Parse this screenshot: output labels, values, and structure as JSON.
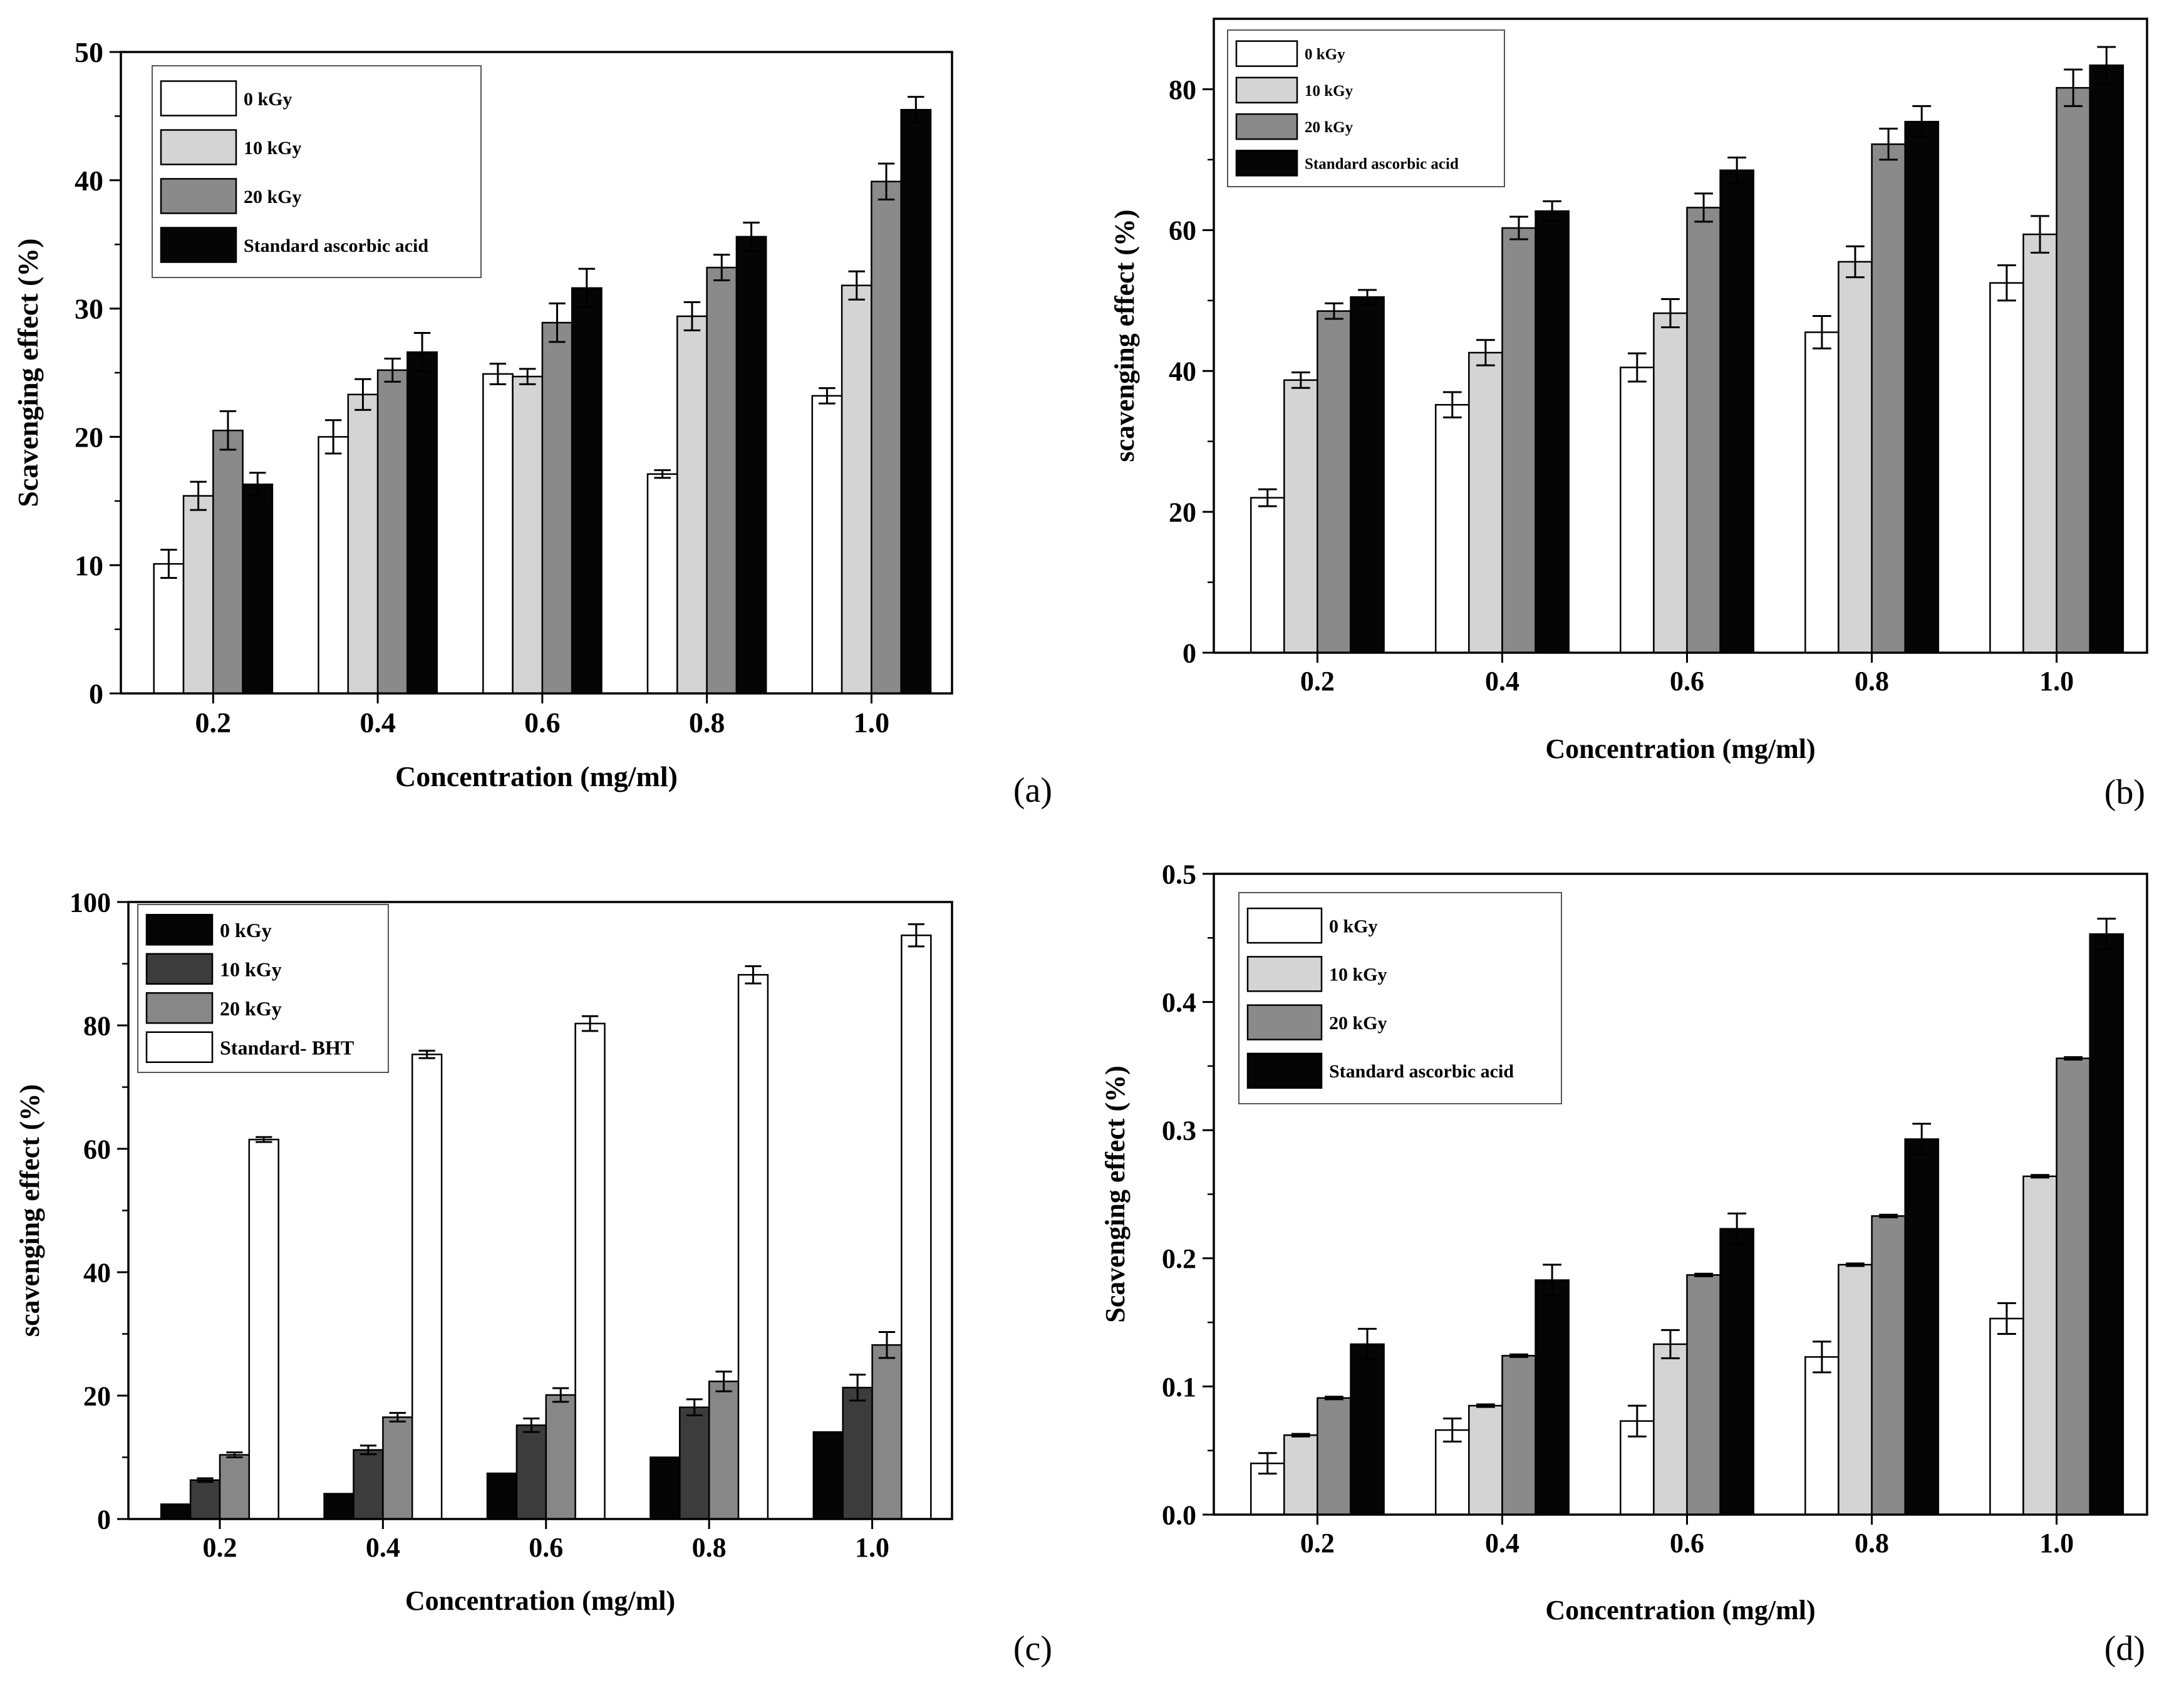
{
  "chart_data": [
    {
      "panel_label": "(a)",
      "type": "bar",
      "xlabel": "Concentration (mg/ml)",
      "ylabel": "Scavenging effect (%)",
      "categories": [
        "0.2",
        "0.4",
        "0.6",
        "0.8",
        "1.0"
      ],
      "ylim": [
        0,
        50
      ],
      "yticks": [
        {
          "value": 0,
          "label": "0"
        },
        {
          "value": 10,
          "label": "10"
        },
        {
          "value": 20,
          "label": "20"
        },
        {
          "value": 30,
          "label": "30"
        },
        {
          "value": 40,
          "label": "40"
        },
        {
          "value": 50,
          "label": "50"
        }
      ],
      "legend_position": "top-left",
      "series": [
        {
          "name": "0 kGy",
          "fill": "#ffffff",
          "values": [
            10.1,
            20.0,
            24.9,
            17.1,
            23.2
          ],
          "errors": [
            1.1,
            1.3,
            0.8,
            0.3,
            0.6
          ]
        },
        {
          "name": "10 kGy",
          "fill": "#d4d4d4",
          "values": [
            15.4,
            23.3,
            24.7,
            29.4,
            31.8
          ],
          "errors": [
            1.1,
            1.2,
            0.6,
            1.1,
            1.1
          ]
        },
        {
          "name": "20 kGy",
          "fill": "#8a8a8a",
          "values": [
            20.5,
            25.2,
            28.9,
            33.2,
            39.9
          ],
          "errors": [
            1.5,
            0.9,
            1.5,
            1.0,
            1.4
          ]
        },
        {
          "name": "Standard ascorbic acid",
          "fill": "#050505",
          "values": [
            16.3,
            26.6,
            31.6,
            35.6,
            45.5
          ],
          "errors": [
            0.9,
            1.5,
            1.5,
            1.1,
            1.0
          ]
        }
      ]
    },
    {
      "panel_label": "(b)",
      "type": "bar",
      "xlabel": "Concentration (mg/ml)",
      "ylabel": "scavenging effect (%)",
      "categories": [
        "0.2",
        "0.4",
        "0.6",
        "0.8",
        "1.0"
      ],
      "ylim": [
        0,
        90
      ],
      "yticks": [
        {
          "value": 0,
          "label": "0"
        },
        {
          "value": 20,
          "label": "20"
        },
        {
          "value": 40,
          "label": "40"
        },
        {
          "value": 60,
          "label": "60"
        },
        {
          "value": 80,
          "label": "80"
        }
      ],
      "legend_position": "top-left",
      "series": [
        {
          "name": "0 kGy",
          "fill": "#ffffff",
          "values": [
            22.0,
            35.2,
            40.5,
            45.5,
            52.5
          ],
          "errors": [
            1.2,
            1.8,
            2.0,
            2.3,
            2.5
          ]
        },
        {
          "name": "10 kGy",
          "fill": "#d4d4d4",
          "values": [
            38.7,
            42.6,
            48.2,
            55.5,
            59.4
          ],
          "errors": [
            1.1,
            1.8,
            2.0,
            2.2,
            2.6
          ]
        },
        {
          "name": "20 kGy",
          "fill": "#8a8a8a",
          "values": [
            48.5,
            60.3,
            63.2,
            72.2,
            80.2
          ],
          "errors": [
            1.1,
            1.6,
            2.0,
            2.2,
            2.6
          ]
        },
        {
          "name": "Standard ascorbic acid",
          "fill": "#050505",
          "values": [
            50.5,
            62.7,
            68.5,
            75.4,
            83.4
          ],
          "errors": [
            1.0,
            1.4,
            1.8,
            2.2,
            2.6
          ]
        }
      ]
    },
    {
      "panel_label": "(c)",
      "type": "bar",
      "xlabel": "Concentration (mg/ml)",
      "ylabel": "scavenging effect (%)",
      "categories": [
        "0.2",
        "0.4",
        "0.6",
        "0.8",
        "1.0"
      ],
      "ylim": [
        0,
        100
      ],
      "yticks": [
        {
          "value": 0,
          "label": "0"
        },
        {
          "value": 20,
          "label": "20"
        },
        {
          "value": 40,
          "label": "40"
        },
        {
          "value": 60,
          "label": "60"
        },
        {
          "value": 80,
          "label": "80"
        },
        {
          "value": 100,
          "label": "100"
        }
      ],
      "legend_position": "top-left",
      "series": [
        {
          "name": "0 kGy",
          "fill": "#050505",
          "values": [
            2.4,
            4.1,
            7.4,
            10.0,
            14.1
          ],
          "errors": [
            0,
            0,
            0,
            0,
            0
          ]
        },
        {
          "name": "10 kGy",
          "fill": "#3c3c3c",
          "values": [
            6.3,
            11.2,
            15.2,
            18.1,
            21.3
          ],
          "errors": [
            0.3,
            0.7,
            1.1,
            1.3,
            2.1
          ]
        },
        {
          "name": "20 kGy",
          "fill": "#878787",
          "values": [
            10.4,
            16.5,
            20.1,
            22.3,
            28.2
          ],
          "errors": [
            0.4,
            0.7,
            1.1,
            1.6,
            2.1
          ]
        },
        {
          "name": "Standard- BHT",
          "fill": "#ffffff",
          "values": [
            61.5,
            75.3,
            80.3,
            88.2,
            94.6
          ],
          "errors": [
            0.4,
            0.6,
            1.2,
            1.4,
            1.8
          ]
        }
      ]
    },
    {
      "panel_label": "(d)",
      "type": "bar",
      "xlabel": "Concentration (mg/ml)",
      "ylabel": "Scavenging effect (%)",
      "categories": [
        "0.2",
        "0.4",
        "0.6",
        "0.8",
        "1.0"
      ],
      "ylim": [
        0,
        0.5
      ],
      "yticks": [
        {
          "value": 0,
          "label": "0.0"
        },
        {
          "value": 0.1,
          "label": "0.1"
        },
        {
          "value": 0.2,
          "label": "0.2"
        },
        {
          "value": 0.3,
          "label": "0.3"
        },
        {
          "value": 0.4,
          "label": "0.4"
        },
        {
          "value": 0.5,
          "label": "0.5"
        }
      ],
      "legend_position": "top-left",
      "series": [
        {
          "name": "0 kGy",
          "fill": "#ffffff",
          "values": [
            0.04,
            0.066,
            0.073,
            0.123,
            0.153
          ],
          "errors": [
            0.008,
            0.009,
            0.012,
            0.012,
            0.012
          ]
        },
        {
          "name": "10 kGy",
          "fill": "#d4d4d4",
          "values": [
            0.062,
            0.085,
            0.133,
            0.195,
            0.264
          ],
          "errors": [
            0.001,
            0.001,
            0.011,
            0.001,
            0.001
          ]
        },
        {
          "name": "20 kGy",
          "fill": "#8a8a8a",
          "values": [
            0.091,
            0.124,
            0.187,
            0.233,
            0.356
          ],
          "errors": [
            0.001,
            0.001,
            0.001,
            0.001,
            0.001
          ]
        },
        {
          "name": "Standard ascorbic acid",
          "fill": "#050505",
          "values": [
            0.133,
            0.183,
            0.223,
            0.293,
            0.453
          ],
          "errors": [
            0.012,
            0.012,
            0.012,
            0.012,
            0.012
          ]
        }
      ]
    }
  ]
}
